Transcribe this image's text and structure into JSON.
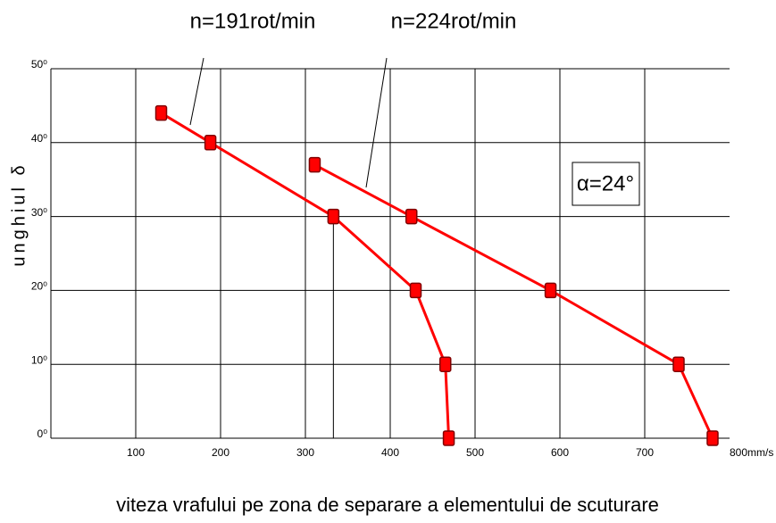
{
  "chart_data": {
    "type": "line",
    "xlabel": "viteza vrafului pe zona de separare a elementului de scuturare",
    "ylabel": "unghiul δ",
    "annotations": [
      "α=24°"
    ],
    "xlim": [
      0,
      800
    ],
    "ylim": [
      0,
      50
    ],
    "xticks": [
      100,
      200,
      300,
      400,
      500,
      600,
      700,
      {
        "value": 800,
        "label": "800mm/s"
      }
    ],
    "yticks": [
      {
        "value": 0,
        "label": "0⁰"
      },
      {
        "value": 10,
        "label": "10⁰"
      },
      {
        "value": 20,
        "label": "20⁰"
      },
      {
        "value": 30,
        "label": "30⁰"
      },
      {
        "value": 40,
        "label": "40⁰"
      },
      {
        "value": 50,
        "label": "50⁰"
      }
    ],
    "grid": true,
    "series": [
      {
        "name": "n=191rot/min",
        "color": "#ff0000",
        "x": [
          130,
          188,
          333,
          430,
          465,
          469
        ],
        "values": [
          44,
          40,
          30,
          20,
          10,
          0
        ]
      },
      {
        "name": "n=224rot/min",
        "color": "#ff0000",
        "x": [
          311,
          425,
          589,
          740,
          780
        ],
        "values": [
          37,
          30,
          20,
          10,
          0
        ]
      }
    ]
  }
}
